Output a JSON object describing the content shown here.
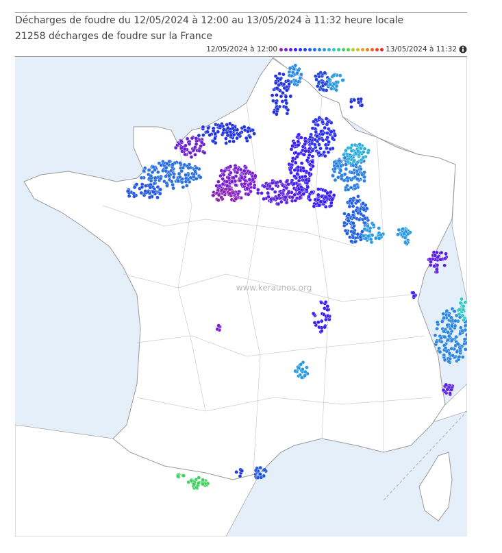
{
  "header": {
    "title": "Décharges de foudre du 12/05/2024 à 12:00 au 13/05/2024 à 11:32 heure locale",
    "subtitle": "21258 décharges de foudre sur la France"
  },
  "legend": {
    "start": "12/05/2024 à 12:00",
    "end": "13/05/2024 à 11:32",
    "colors": [
      "#8b1fb0",
      "#7a1fd0",
      "#5a1fe0",
      "#3a1ff0",
      "#2a2ff0",
      "#1f45ee",
      "#1f5ae8",
      "#1f70e0",
      "#2085e0",
      "#2a9ae0",
      "#30b0d8",
      "#30c8c0",
      "#30d090",
      "#40d060",
      "#60d040",
      "#a0d030",
      "#d0c020",
      "#e8a020",
      "#f08020",
      "#f06020",
      "#f04020",
      "#e82020"
    ]
  },
  "watermark": "www.keraunos.org"
}
